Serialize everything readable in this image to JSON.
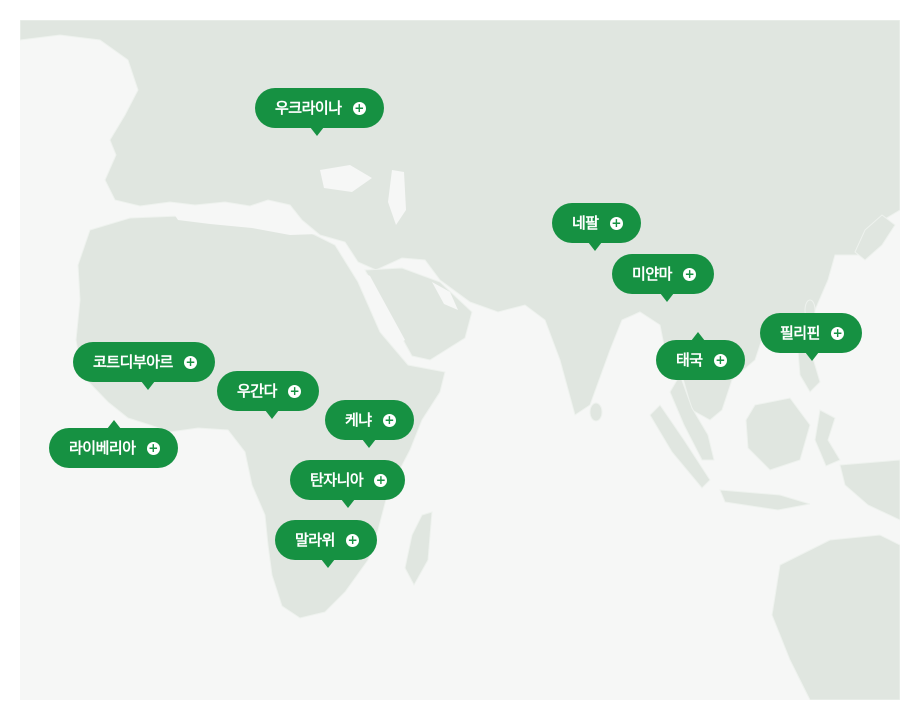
{
  "colors": {
    "land": "#e0e6e0",
    "sea": "#f6f7f6",
    "pin": "#169142",
    "pin_text": "#ffffff"
  },
  "plus_glyph": "+",
  "pins": [
    {
      "id": "ukraine",
      "label": "우크라이나"
    },
    {
      "id": "nepal",
      "label": "네팔"
    },
    {
      "id": "myanmar",
      "label": "미얀마"
    },
    {
      "id": "philippines",
      "label": "필리핀"
    },
    {
      "id": "thailand",
      "label": "태국"
    },
    {
      "id": "cote-divoire",
      "label": "코트디부아르"
    },
    {
      "id": "uganda",
      "label": "우간다"
    },
    {
      "id": "kenya",
      "label": "케냐"
    },
    {
      "id": "liberia",
      "label": "라이베리아"
    },
    {
      "id": "tanzania",
      "label": "탄자니아"
    },
    {
      "id": "malawi",
      "label": "말라위"
    }
  ]
}
